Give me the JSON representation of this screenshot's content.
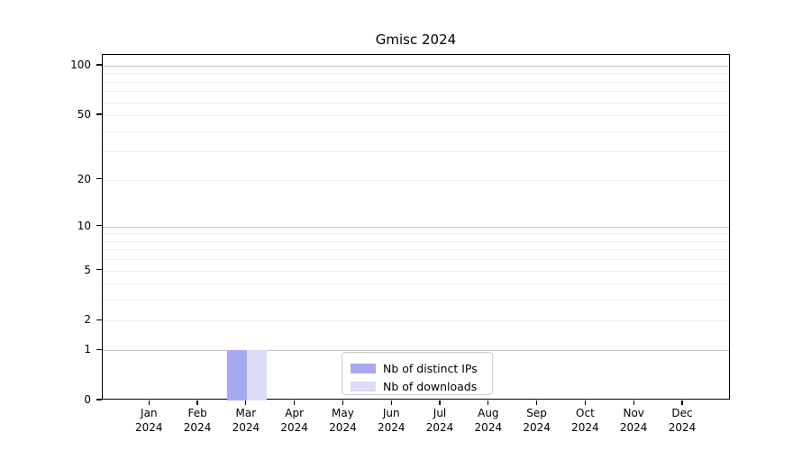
{
  "chart_data": {
    "type": "bar",
    "title": "Gmisc 2024",
    "x_axis": {
      "categories": [
        "Jan",
        "Feb",
        "Mar",
        "Apr",
        "May",
        "Jun",
        "Jul",
        "Aug",
        "Sep",
        "Oct",
        "Nov",
        "Dec"
      ],
      "year": "2024"
    },
    "y_axis": {
      "scale": "log1p",
      "ticks": [
        100,
        50,
        20,
        10,
        5,
        2,
        1,
        0
      ],
      "major_gridlines": [
        1,
        10,
        100
      ],
      "minor_gridlines": [
        2,
        3,
        4,
        5,
        6,
        7,
        8,
        9,
        20,
        30,
        40,
        50,
        60,
        70,
        80,
        90
      ],
      "ylim": [
        0,
        116
      ],
      "grid": true
    },
    "series": [
      {
        "name": "Nb of distinct IPs",
        "color": "#a8a8f0",
        "values": [
          0,
          0,
          1,
          0,
          0,
          0,
          0,
          0,
          0,
          0,
          0,
          0
        ]
      },
      {
        "name": "Nb of downloads",
        "color": "#dcdcf8",
        "values": [
          0,
          0,
          1,
          0,
          0,
          0,
          0,
          0,
          0,
          0,
          0,
          0
        ]
      }
    ],
    "legend": {
      "position": "inside-bottom-center"
    }
  }
}
